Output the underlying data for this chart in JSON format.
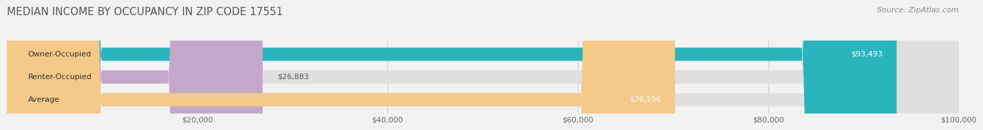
{
  "title": "MEDIAN INCOME BY OCCUPANCY IN ZIP CODE 17551",
  "source": "Source: ZipAtlas.com",
  "categories": [
    "Owner-Occupied",
    "Renter-Occupied",
    "Average"
  ],
  "values": [
    93493,
    26883,
    70196
  ],
  "bar_colors": [
    "#2ab5bc",
    "#c4a8cb",
    "#f5c987"
  ],
  "label_colors": [
    "#ffffff",
    "#555555",
    "#555555"
  ],
  "value_labels": [
    "$93,493",
    "$26,883",
    "$70,196"
  ],
  "xlim": [
    0,
    100000
  ],
  "xticks": [
    0,
    20000,
    40000,
    60000,
    80000,
    100000
  ],
  "xtick_labels": [
    "",
    "$20,000",
    "$40,000",
    "$60,000",
    "$80,000",
    "$100,000"
  ],
  "background_color": "#f2f2f2",
  "bar_background_color": "#e0e0e0",
  "title_fontsize": 11,
  "source_fontsize": 8,
  "bar_height": 0.58
}
